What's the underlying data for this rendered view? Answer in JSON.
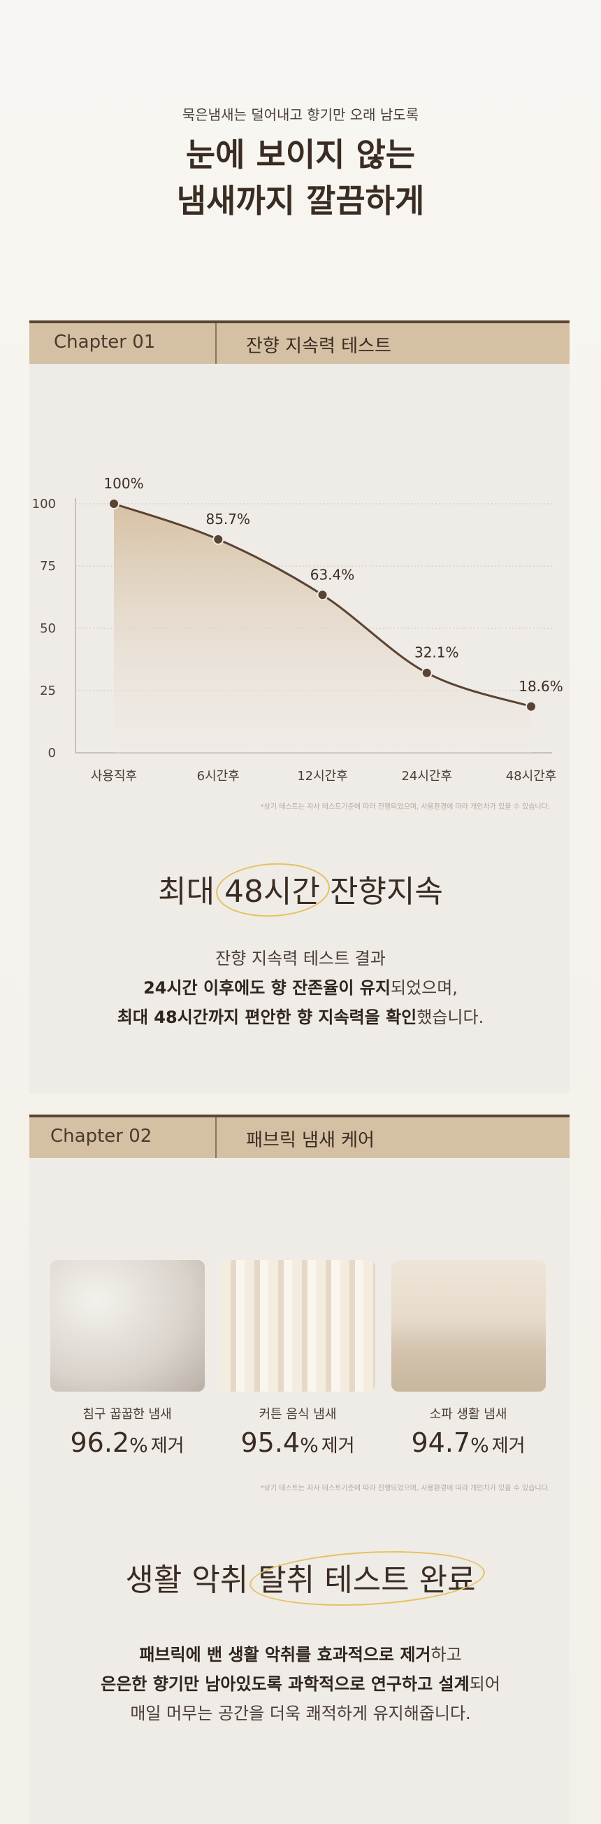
{
  "header": {
    "subtitle": "묵은냄새는 덜어내고 향기만 오래 남도록",
    "title_lines": [
      "눈에 보이지 않는",
      "냄새까지 깔끔하게"
    ]
  },
  "chapter1": {
    "label": "Chapter  01",
    "title": "잔향 지속력 테스트",
    "footnote": "*상기 테스트는 자사 테스트기준에 따라 진행되었으며, 사용환경에 따라 개인차가 있을 수 있습니다.",
    "headline": [
      {
        "text": "최대 ",
        "highlight": false
      },
      {
        "text": "48시간",
        "highlight": true
      },
      {
        "text": " 잔향지속",
        "highlight": false
      }
    ],
    "paragraph": [
      [
        {
          "text": "잔향 지속력 테스트 결과",
          "bold": false
        }
      ],
      [
        {
          "text": "24시간 이후에도 향 잔존율이 유지",
          "bold": true
        },
        {
          "text": "되었으며,",
          "bold": false
        }
      ],
      [
        {
          "text": "최대 48시간까지 편안한 향 지속력을 확인",
          "bold": true
        },
        {
          "text": "했습니다.",
          "bold": false
        }
      ]
    ]
  },
  "chart_data": {
    "type": "line",
    "categories": [
      "사용직후",
      "6시간후",
      "12시간후",
      "24시간후",
      "48시간후"
    ],
    "values": [
      100,
      85.7,
      63.4,
      32.1,
      18.6
    ],
    "value_labels": [
      "100%",
      "85.7%",
      "63.4%",
      "32.1%",
      "18.6%"
    ],
    "color": "#5b4332",
    "ylim": [
      0,
      100
    ],
    "yticks": [
      0,
      25,
      50,
      75,
      100
    ],
    "grid": true
  },
  "chapter2": {
    "label": "Chapter  02",
    "title": "패브릭 냄새 케어",
    "footnote": "*상기 테스트는 자사 테스트기준에 따라 진행되었으며, 사용환경에 따라 개인차가 있을 수 있습니다.",
    "items": [
      {
        "label": "침구 꿉꿉한 냄새",
        "value": 96.2,
        "unit": "%",
        "suffix": "제거"
      },
      {
        "label": "커튼 음식 냄새",
        "value": 95.4,
        "unit": "%",
        "suffix": "제거"
      },
      {
        "label": "소파 생활 냄새",
        "value": 94.7,
        "unit": "%",
        "suffix": "제거"
      }
    ],
    "headline": [
      {
        "text": "생활 악취 ",
        "highlight": false
      },
      {
        "text": "탈취 테스트 완료",
        "highlight": true
      }
    ],
    "paragraph": [
      [
        {
          "text": "패브릭에 밴 생활 악취를 효과적으로 제거",
          "bold": true
        },
        {
          "text": "하고",
          "bold": false
        }
      ],
      [
        {
          "text": "은은한 향기만 남아있도록 과학적으로 연구하고 설계",
          "bold": true
        },
        {
          "text": "되어",
          "bold": false
        }
      ],
      [
        {
          "text": "매일 머무는 공간을 더욱 쾌적하게 유지해줍니다.",
          "bold": false
        }
      ]
    ]
  }
}
